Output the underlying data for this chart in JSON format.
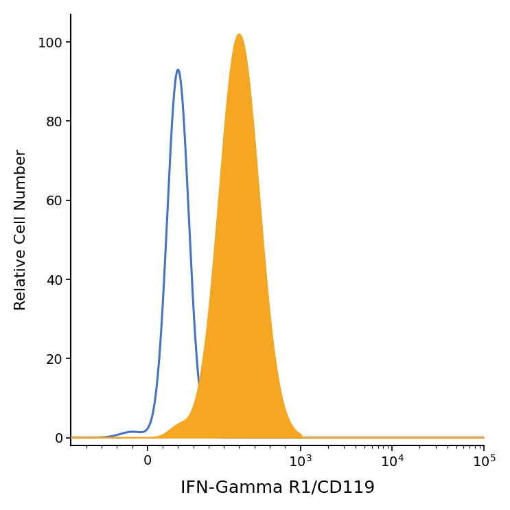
{
  "title": "",
  "xlabel": "IFN-Gamma R1/CD119",
  "ylabel": "Relative Cell Number",
  "ylim": [
    -2,
    107
  ],
  "yticks": [
    0,
    20,
    40,
    60,
    80,
    100
  ],
  "blue_color": "#4472C4",
  "orange_color": "#F5A623",
  "blue_linewidth": 2.2,
  "orange_linewidth": 1.5,
  "background_color": "#ffffff",
  "xlabel_fontsize": 18,
  "ylabel_fontsize": 16,
  "tick_fontsize": 14,
  "blue_mu": 200,
  "blue_sigma": 70,
  "blue_amp": 93,
  "orange_mu": 600,
  "orange_sigma": 130,
  "orange_amp": 102,
  "linthresh": 1000,
  "linscale": 1.5
}
